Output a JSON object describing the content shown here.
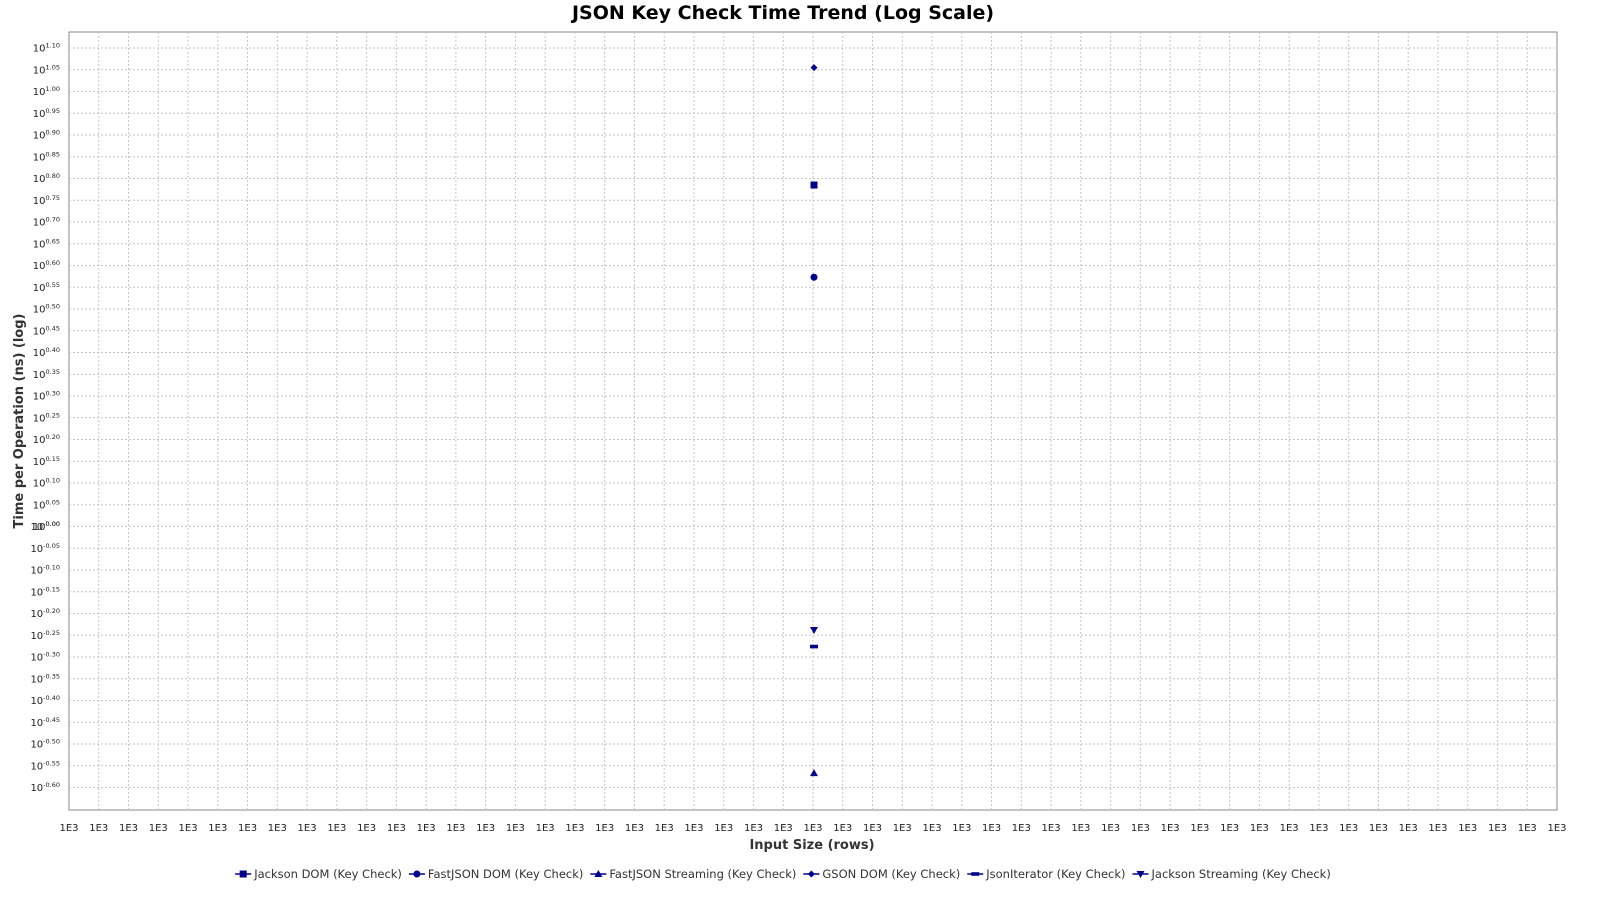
{
  "chart_data": {
    "type": "scatter",
    "title": "JSON Key Check Time Trend (Log Scale)",
    "xlabel": "Input Size (rows)",
    "ylabel": "Time per Operation (ns) (log)",
    "y_scale": "log10",
    "ylim_log10": [
      -0.64,
      1.14
    ],
    "y_tick_base": "10",
    "y_ticks": [
      "1.10",
      "1.05",
      "1.00",
      "0.95",
      "0.90",
      "0.85",
      "0.80",
      "0.75",
      "0.70",
      "0.65",
      "0.60",
      "0.55",
      "0.50",
      "0.45",
      "0.40",
      "0.35",
      "0.30",
      "0.25",
      "0.20",
      "0.15",
      "0.10",
      "0.05",
      "0.00",
      "-0.00",
      "-0.05",
      "-0.10",
      "-0.15",
      "-0.20",
      "-0.25",
      "-0.30",
      "-0.35",
      "-0.40",
      "-0.45",
      "-0.50",
      "-0.55",
      "-0.60"
    ],
    "x_tick_label": "1E3",
    "x_tick_count": 51,
    "x": [
      1000
    ],
    "grid": true,
    "legend_position": "bottom",
    "series": [
      {
        "name": "Jackson DOM (Key Check)",
        "marker": "square",
        "log10_values": [
          0.785
        ]
      },
      {
        "name": "FastJSON DOM (Key Check)",
        "marker": "circle",
        "log10_values": [
          0.573
        ]
      },
      {
        "name": "FastJSON Streaming (Key Check)",
        "marker": "triangle-up",
        "log10_values": [
          -0.567
        ]
      },
      {
        "name": "GSON DOM (Key Check)",
        "marker": "diamond",
        "log10_values": [
          1.055
        ]
      },
      {
        "name": "JsonIterator (Key Check)",
        "marker": "rect",
        "log10_values": [
          -0.276
        ]
      },
      {
        "name": "Jackson Streaming (Key Check)",
        "marker": "triangle-down",
        "log10_values": [
          -0.238
        ]
      }
    ],
    "colors": {
      "series": "#00008b",
      "grid": "#c4c4c4",
      "frame": "#888888"
    }
  }
}
